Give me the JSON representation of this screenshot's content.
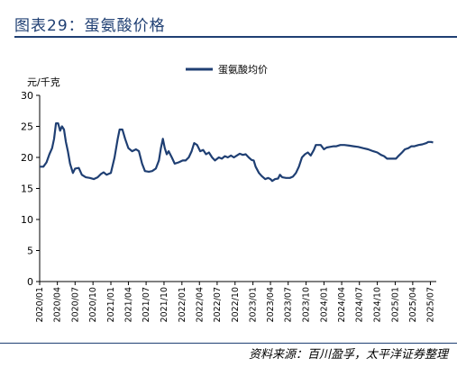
{
  "header": {
    "title": "图表29：蛋氨酸价格"
  },
  "chart_data": {
    "type": "line",
    "title": "",
    "ylabel": "元/千克",
    "xlabel": "",
    "ylim": [
      0,
      30
    ],
    "y_ticks": [
      "0",
      "5",
      "10",
      "15",
      "20",
      "25",
      "30"
    ],
    "x_ticks": [
      "2020/01",
      "2020/04",
      "2020/07",
      "2020/10",
      "2021/01",
      "2021/04",
      "2021/07",
      "2021/10",
      "2022/01",
      "2022/04",
      "2022/07",
      "2022/10",
      "2023/01",
      "2023/04",
      "2023/07",
      "2023/10",
      "2024/01",
      "2024/04",
      "2024/07",
      "2024/10",
      "2025/01",
      "2025/04",
      "2025/07"
    ],
    "grid": false,
    "legend": "top-center",
    "series": [
      {
        "name": "蛋氨酸均价",
        "color": "#1f3f73",
        "points": [
          [
            "2020/01/01",
            18.5
          ],
          [
            "2020/01/20",
            18.5
          ],
          [
            "2020/02/05",
            19.2
          ],
          [
            "2020/02/20",
            20.5
          ],
          [
            "2020/03/05",
            21.5
          ],
          [
            "2020/03/15",
            23.0
          ],
          [
            "2020/03/25",
            25.5
          ],
          [
            "2020/04/05",
            25.5
          ],
          [
            "2020/04/15",
            24.3
          ],
          [
            "2020/04/25",
            25.0
          ],
          [
            "2020/05/05",
            24.5
          ],
          [
            "2020/05/15",
            22.5
          ],
          [
            "2020/05/25",
            21.0
          ],
          [
            "2020/06/05",
            19.0
          ],
          [
            "2020/06/20",
            17.5
          ],
          [
            "2020/07/01",
            18.2
          ],
          [
            "2020/07/20",
            18.3
          ],
          [
            "2020/08/05",
            17.2
          ],
          [
            "2020/08/25",
            16.8
          ],
          [
            "2020/09/15",
            16.7
          ],
          [
            "2020/10/05",
            16.5
          ],
          [
            "2020/10/25",
            16.8
          ],
          [
            "2020/11/10",
            17.3
          ],
          [
            "2020/11/25",
            17.6
          ],
          [
            "2020/12/10",
            17.2
          ],
          [
            "2021/01/01",
            17.5
          ],
          [
            "2021/01/20",
            20.0
          ],
          [
            "2021/02/05",
            23.0
          ],
          [
            "2021/02/15",
            24.5
          ],
          [
            "2021/03/01",
            24.5
          ],
          [
            "2021/03/15",
            23.0
          ],
          [
            "2021/04/01",
            21.5
          ],
          [
            "2021/04/20",
            21.0
          ],
          [
            "2021/05/10",
            21.3
          ],
          [
            "2021/05/25",
            21.0
          ],
          [
            "2021/06/10",
            19.0
          ],
          [
            "2021/06/25",
            17.8
          ],
          [
            "2021/07/15",
            17.7
          ],
          [
            "2021/08/01",
            17.8
          ],
          [
            "2021/08/20",
            18.2
          ],
          [
            "2021/09/05",
            19.5
          ],
          [
            "2021/09/15",
            21.5
          ],
          [
            "2021/09/25",
            23.0
          ],
          [
            "2021/10/05",
            21.5
          ],
          [
            "2021/10/15",
            20.5
          ],
          [
            "2021/10/25",
            21.0
          ],
          [
            "2021/11/10",
            20.0
          ],
          [
            "2021/11/25",
            19.0
          ],
          [
            "2021/12/15",
            19.2
          ],
          [
            "2022/01/05",
            19.5
          ],
          [
            "2022/01/20",
            19.5
          ],
          [
            "2022/02/05",
            20.0
          ],
          [
            "2022/02/20",
            21.0
          ],
          [
            "2022/03/05",
            22.3
          ],
          [
            "2022/03/20",
            22.0
          ],
          [
            "2022/04/05",
            21.0
          ],
          [
            "2022/04/20",
            21.2
          ],
          [
            "2022/05/05",
            20.5
          ],
          [
            "2022/05/20",
            20.8
          ],
          [
            "2022/06/05",
            20.0
          ],
          [
            "2022/06/20",
            19.5
          ],
          [
            "2022/07/10",
            20.0
          ],
          [
            "2022/07/25",
            19.8
          ],
          [
            "2022/08/10",
            20.2
          ],
          [
            "2022/08/25",
            20.0
          ],
          [
            "2022/09/10",
            20.3
          ],
          [
            "2022/09/25",
            20.0
          ],
          [
            "2022/10/10",
            20.3
          ],
          [
            "2022/10/25",
            20.6
          ],
          [
            "2022/11/10",
            20.4
          ],
          [
            "2022/11/25",
            20.5
          ],
          [
            "2022/12/10",
            20.0
          ],
          [
            "2022/12/25",
            19.6
          ],
          [
            "2023/01/05",
            19.5
          ],
          [
            "2023/01/15",
            18.5
          ],
          [
            "2023/02/01",
            17.5
          ],
          [
            "2023/02/15",
            17.0
          ],
          [
            "2023/03/05",
            16.5
          ],
          [
            "2023/03/20",
            16.7
          ],
          [
            "2023/04/01",
            16.5
          ],
          [
            "2023/04/10",
            16.2
          ],
          [
            "2023/04/25",
            16.5
          ],
          [
            "2023/05/10",
            16.6
          ],
          [
            "2023/05/20",
            17.2
          ],
          [
            "2023/06/01",
            16.8
          ],
          [
            "2023/06/20",
            16.7
          ],
          [
            "2023/07/10",
            16.7
          ],
          [
            "2023/07/25",
            16.9
          ],
          [
            "2023/08/10",
            17.5
          ],
          [
            "2023/08/25",
            18.5
          ],
          [
            "2023/09/10",
            20.0
          ],
          [
            "2023/09/25",
            20.5
          ],
          [
            "2023/10/10",
            20.8
          ],
          [
            "2023/10/25",
            20.3
          ],
          [
            "2023/11/10",
            21.2
          ],
          [
            "2023/11/20",
            22.0
          ],
          [
            "2023/12/15",
            22.0
          ],
          [
            "2024/01/01",
            21.3
          ],
          [
            "2024/01/15",
            21.6
          ],
          [
            "2024/02/01",
            21.7
          ],
          [
            "2024/02/20",
            21.8
          ],
          [
            "2024/03/05",
            21.8
          ],
          [
            "2024/03/25",
            22.0
          ],
          [
            "2024/04/15",
            22.0
          ],
          [
            "2024/05/10",
            21.9
          ],
          [
            "2024/06/01",
            21.8
          ],
          [
            "2024/06/25",
            21.7
          ],
          [
            "2024/07/20",
            21.5
          ],
          [
            "2024/08/15",
            21.3
          ],
          [
            "2024/09/10",
            21.0
          ],
          [
            "2024/10/01",
            20.8
          ],
          [
            "2024/10/20",
            20.4
          ],
          [
            "2024/11/05",
            20.2
          ],
          [
            "2024/11/20",
            19.8
          ],
          [
            "2024/12/15",
            19.8
          ],
          [
            "2025/01/05",
            19.8
          ],
          [
            "2025/01/20",
            20.3
          ],
          [
            "2025/02/05",
            20.8
          ],
          [
            "2025/02/20",
            21.3
          ],
          [
            "2025/03/10",
            21.5
          ],
          [
            "2025/03/25",
            21.8
          ],
          [
            "2025/04/10",
            21.8
          ],
          [
            "2025/05/01",
            22.0
          ],
          [
            "2025/05/20",
            22.1
          ],
          [
            "2025/06/10",
            22.3
          ],
          [
            "2025/06/20",
            22.5
          ],
          [
            "2025/07/05",
            22.5
          ],
          [
            "2025/07/15",
            22.4
          ]
        ]
      }
    ]
  },
  "footer": {
    "source": "资料来源：百川盈孚，太平洋证券整理"
  }
}
